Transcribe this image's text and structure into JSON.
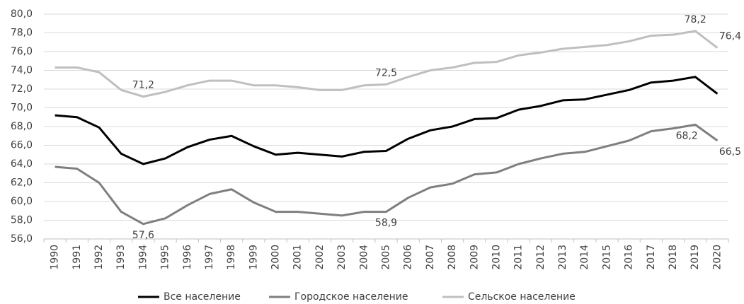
{
  "chart_data": {
    "type": "line",
    "categories": [
      "1990",
      "1991",
      "1992",
      "1993",
      "1994",
      "1995",
      "1996",
      "1997",
      "1998",
      "1999",
      "2000",
      "2001",
      "2002",
      "2003",
      "2004",
      "2005",
      "2006",
      "2007",
      "2008",
      "2009",
      "2010",
      "2011",
      "2012",
      "2013",
      "2014",
      "2015",
      "2016",
      "2017",
      "2018",
      "2019",
      "2020"
    ],
    "series": [
      {
        "name": "Все население",
        "color": "#000000",
        "values": [
          69.2,
          69.0,
          67.9,
          65.1,
          64.0,
          64.6,
          65.8,
          66.6,
          67.0,
          65.9,
          65.0,
          65.2,
          65.0,
          64.8,
          65.3,
          65.4,
          66.7,
          67.6,
          68.0,
          68.8,
          68.9,
          69.8,
          70.2,
          70.8,
          70.9,
          71.4,
          71.9,
          72.7,
          72.9,
          73.3,
          71.5
        ]
      },
      {
        "name": "Городское население",
        "color": "#7f7f7f",
        "values": [
          63.7,
          63.5,
          62.0,
          58.9,
          57.6,
          58.2,
          59.6,
          60.8,
          61.3,
          59.9,
          58.9,
          58.9,
          58.7,
          58.5,
          58.9,
          58.9,
          60.4,
          61.5,
          61.9,
          62.9,
          63.1,
          64.0,
          64.6,
          65.1,
          65.3,
          65.9,
          66.5,
          67.5,
          67.8,
          68.2,
          66.5
        ],
        "value_labels": [
          null,
          null,
          null,
          null,
          "57,6",
          null,
          null,
          null,
          null,
          null,
          null,
          null,
          null,
          null,
          null,
          "58,9",
          null,
          null,
          null,
          null,
          null,
          null,
          null,
          null,
          null,
          null,
          null,
          null,
          null,
          "68,2",
          "66,5"
        ]
      },
      {
        "name": "Сельское население",
        "color": "#bfbfbf",
        "values": [
          74.3,
          74.3,
          73.8,
          71.9,
          71.2,
          71.7,
          72.4,
          72.9,
          72.9,
          72.4,
          72.4,
          72.2,
          71.9,
          71.9,
          72.4,
          72.5,
          73.3,
          74.0,
          74.3,
          74.8,
          74.9,
          75.6,
          75.9,
          76.3,
          76.5,
          76.7,
          77.1,
          77.7,
          77.8,
          78.2,
          76.4
        ],
        "value_labels": [
          null,
          null,
          null,
          null,
          "71,2",
          null,
          null,
          null,
          null,
          null,
          null,
          null,
          null,
          null,
          null,
          "72,5",
          null,
          null,
          null,
          null,
          null,
          null,
          null,
          null,
          null,
          null,
          null,
          null,
          null,
          "78,2",
          "76,4"
        ]
      }
    ],
    "ylim": [
      56,
      80
    ],
    "yticks": [
      {
        "value": 56,
        "label": "56,0"
      },
      {
        "value": 58,
        "label": "58,0"
      },
      {
        "value": 60,
        "label": "60,0"
      },
      {
        "value": 62,
        "label": "62,0"
      },
      {
        "value": 64,
        "label": "64,0"
      },
      {
        "value": 66,
        "label": "66,0"
      },
      {
        "value": 68,
        "label": "68,0"
      },
      {
        "value": 70,
        "label": "70,0"
      },
      {
        "value": 72,
        "label": "72,0"
      },
      {
        "value": 74,
        "label": "74,0"
      },
      {
        "value": 76,
        "label": "76,0"
      },
      {
        "value": 78,
        "label": "78,0"
      },
      {
        "value": 80,
        "label": "80,0"
      }
    ],
    "grid": true,
    "legend": "bottom"
  }
}
